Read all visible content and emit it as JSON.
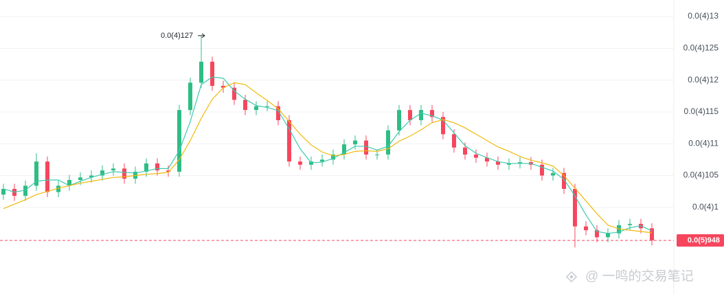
{
  "chart_data": {
    "type": "candlestick",
    "categories": [
      null,
      null,
      null,
      null,
      null,
      null,
      null,
      null,
      null,
      null,
      null,
      null,
      null,
      null,
      null,
      null,
      null,
      null,
      null,
      null,
      null,
      null,
      null,
      null,
      null,
      null,
      null,
      null,
      null,
      null,
      null,
      null,
      null,
      null,
      null,
      null,
      null,
      null,
      null,
      null,
      null,
      null,
      null,
      null,
      null,
      null,
      null,
      null,
      null,
      null,
      null,
      null,
      null,
      null,
      null,
      null,
      null,
      null,
      null,
      null
    ],
    "open": [
      1.02e-05,
      1.029e-05,
      1.018e-05,
      1.034e-05,
      1.072e-05,
      1.024e-05,
      1.034e-05,
      1.043e-05,
      1.047e-05,
      1.05e-05,
      1.058e-05,
      1.061e-05,
      1.045e-05,
      1.056e-05,
      1.069e-05,
      1.058e-05,
      1.056e-05,
      1.153e-05,
      1.196e-05,
      1.229e-05,
      1.191e-05,
      1.188e-05,
      1.169e-05,
      1.153e-05,
      1.159e-05,
      1.159e-05,
      1.137e-05,
      1.072e-05,
      1.067e-05,
      1.072e-05,
      1.075e-05,
      1.083e-05,
      1.099e-05,
      1.105e-05,
      1.083e-05,
      1.083e-05,
      1.121e-05,
      1.153e-05,
      1.137e-05,
      1.153e-05,
      1.142e-05,
      1.115e-05,
      1.094e-05,
      1.083e-05,
      1.078e-05,
      1.072e-05,
      1.067e-05,
      1.069e-05,
      1.071e-05,
      1.067e-05,
      1.05e-05,
      1.054e-05,
      1.029e-05,
      9.7e-06,
      9.64e-06,
      9.53e-06,
      9.59e-06,
      9.72e-06,
      9.74e-06,
      9.67e-06
    ],
    "high": [
      1.037e-05,
      1.037e-05,
      1.042e-05,
      1.085e-05,
      1.08e-05,
      1.042e-05,
      1.051e-05,
      1.055e-05,
      1.058e-05,
      1.066e-05,
      1.069e-05,
      1.069e-05,
      1.064e-05,
      1.077e-05,
      1.077e-05,
      1.066e-05,
      1.161e-05,
      1.204e-05,
      1.27e-05,
      1.237e-05,
      1.199e-05,
      1.196e-05,
      1.177e-05,
      1.167e-05,
      1.167e-05,
      1.167e-05,
      1.145e-05,
      1.08e-05,
      1.08e-05,
      1.083e-05,
      1.091e-05,
      1.107e-05,
      1.113e-05,
      1.113e-05,
      1.091e-05,
      1.129e-05,
      1.161e-05,
      1.161e-05,
      1.161e-05,
      1.161e-05,
      1.15e-05,
      1.123e-05,
      1.102e-05,
      1.091e-05,
      1.086e-05,
      1.08e-05,
      1.077e-05,
      1.079e-05,
      1.079e-05,
      1.075e-05,
      1.062e-05,
      1.062e-05,
      1.037e-05,
      9.78e-06,
      9.72e-06,
      9.67e-06,
      9.8e-06,
      9.82e-06,
      9.82e-06,
      9.75e-06
    ],
    "low": [
      1.012e-05,
      1.01e-05,
      1.01e-05,
      1.026e-05,
      1.016e-05,
      1.016e-05,
      1.026e-05,
      1.035e-05,
      1.039e-05,
      1.042e-05,
      1.05e-05,
      1.037e-05,
      1.037e-05,
      1.048e-05,
      1.05e-05,
      1.048e-05,
      1.048e-05,
      1.145e-05,
      1.188e-05,
      1.183e-05,
      1.18e-05,
      1.161e-05,
      1.145e-05,
      1.145e-05,
      1.151e-05,
      1.129e-05,
      1.064e-05,
      1.059e-05,
      1.059e-05,
      1.064e-05,
      1.067e-05,
      1.075e-05,
      1.091e-05,
      1.075e-05,
      1.075e-05,
      1.075e-05,
      1.113e-05,
      1.129e-05,
      1.129e-05,
      1.134e-05,
      1.107e-05,
      1.086e-05,
      1.075e-05,
      1.07e-05,
      1.064e-05,
      1.059e-05,
      1.059e-05,
      1.061e-05,
      1.059e-05,
      1.042e-05,
      1.042e-05,
      1.021e-05,
      9.37e-06,
      9.56e-06,
      9.45e-06,
      9.45e-06,
      9.51e-06,
      9.64e-06,
      9.59e-06,
      9.4e-06
    ],
    "close": [
      1.029e-05,
      1.018e-05,
      1.034e-05,
      1.072e-05,
      1.024e-05,
      1.034e-05,
      1.043e-05,
      1.047e-05,
      1.05e-05,
      1.058e-05,
      1.061e-05,
      1.045e-05,
      1.056e-05,
      1.069e-05,
      1.058e-05,
      1.056e-05,
      1.153e-05,
      1.196e-05,
      1.229e-05,
      1.191e-05,
      1.188e-05,
      1.169e-05,
      1.153e-05,
      1.159e-05,
      1.159e-05,
      1.137e-05,
      1.072e-05,
      1.067e-05,
      1.072e-05,
      1.075e-05,
      1.083e-05,
      1.099e-05,
      1.105e-05,
      1.083e-05,
      1.083e-05,
      1.121e-05,
      1.153e-05,
      1.137e-05,
      1.153e-05,
      1.142e-05,
      1.115e-05,
      1.094e-05,
      1.083e-05,
      1.078e-05,
      1.072e-05,
      1.067e-05,
      1.069e-05,
      1.071e-05,
      1.067e-05,
      1.05e-05,
      1.054e-05,
      1.029e-05,
      9.7e-06,
      9.64e-06,
      9.53e-06,
      9.59e-06,
      9.72e-06,
      9.74e-06,
      9.67e-06,
      9.48e-06
    ],
    "up_color": "#2ebd85",
    "down_color": "#f6465d",
    "series": [
      {
        "color": "#3cc9b0",
        "values": [
          1.029e-05,
          1.024e-05,
          1.027e-05,
          1.041e-05,
          1.043e-05,
          1.043e-05,
          1.034e-05,
          1.041e-05,
          1.047e-05,
          1.052e-05,
          1.056e-05,
          1.055e-05,
          1.054e-05,
          1.057e-05,
          1.061e-05,
          1.061e-05,
          1.089e-05,
          1.135e-05,
          1.193e-05,
          1.205e-05,
          1.203e-05,
          1.183e-05,
          1.17e-05,
          1.16e-05,
          1.157e-05,
          1.152e-05,
          1.123e-05,
          1.092e-05,
          1.07e-05,
          1.071e-05,
          1.077e-05,
          1.086e-05,
          1.096e-05,
          1.096e-05,
          1.09e-05,
          1.096e-05,
          1.119e-05,
          1.137e-05,
          1.148e-05,
          1.144e-05,
          1.137e-05,
          1.117e-05,
          1.097e-05,
          1.085e-05,
          1.078e-05,
          1.072e-05,
          1.069e-05,
          1.069e-05,
          1.069e-05,
          1.063e-05,
          1.057e-05,
          1.044e-05,
          1.018e-05,
          9.88e-06,
          9.62e-06,
          9.59e-06,
          9.61e-06,
          9.68e-06,
          9.71e-06,
          9.63e-06
        ]
      },
      {
        "color": "#f0b90b",
        "values": [
          9.98e-06,
          1.005e-05,
          1.012e-05,
          1.02e-05,
          1.025e-05,
          1.03e-05,
          1.034e-05,
          1.038e-05,
          1.041e-05,
          1.044e-05,
          1.047e-05,
          1.048e-05,
          1.05e-05,
          1.052e-05,
          1.053e-05,
          1.055e-05,
          1.075e-05,
          1.105e-05,
          1.14e-05,
          1.17e-05,
          1.188e-05,
          1.196e-05,
          1.193e-05,
          1.18e-05,
          1.168e-05,
          1.155e-05,
          1.135e-05,
          1.115e-05,
          1.098e-05,
          1.087e-05,
          1.081e-05,
          1.083e-05,
          1.088e-05,
          1.089e-05,
          1.088e-05,
          1.092e-05,
          1.104e-05,
          1.112e-05,
          1.122e-05,
          1.133e-05,
          1.138e-05,
          1.133e-05,
          1.125e-05,
          1.115e-05,
          1.105e-05,
          1.095e-05,
          1.088e-05,
          1.08e-05,
          1.074e-05,
          1.07e-05,
          1.065e-05,
          1.05e-05,
          1.03e-05,
          1.01e-05,
          9.9e-06,
          9.72e-06,
          9.66e-06,
          9.64e-06,
          9.62e-06,
          9.6e-06
        ]
      }
    ],
    "ylim": [
      8.637e-06,
      1.326e-05
    ],
    "yticks": [
      {
        "value": 1.3e-05,
        "label": "0.0(4)13"
      },
      {
        "value": 1.25e-05,
        "label": "0.0(4)125"
      },
      {
        "value": 1.2e-05,
        "label": "0.0(4)12"
      },
      {
        "value": 1.15e-05,
        "label": "0.0(4)115"
      },
      {
        "value": 1.1e-05,
        "label": "0.0(4)11"
      },
      {
        "value": 1.05e-05,
        "label": "0.0(4)105"
      },
      {
        "value": 1e-05,
        "label": "0.0(4)1"
      }
    ],
    "grid": true,
    "high_label": {
      "value": 1.27e-05,
      "label": "0.0(4)127"
    },
    "last_price": {
      "value": 9.48e-06,
      "label": "0.0(5)948",
      "color": "#f6465d"
    },
    "watermark": "@ 一鸣的交易笔记"
  }
}
